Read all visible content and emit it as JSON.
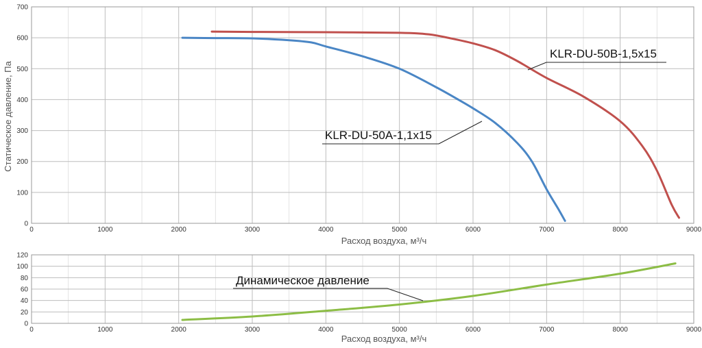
{
  "chart_data": [
    {
      "type": "line",
      "ylabel": "Статическое давление, Па",
      "xlabel": "Расход воздуха, м³/ч",
      "xlim": [
        0,
        9000
      ],
      "ylim": [
        0,
        700
      ],
      "x_ticks": [
        0,
        1000,
        2000,
        3000,
        4000,
        5000,
        6000,
        7000,
        8000,
        9000
      ],
      "y_ticks": [
        0,
        100,
        200,
        300,
        400,
        500,
        600,
        700
      ],
      "grid": true,
      "series": [
        {
          "name": "KLR-DU-50A-1,1x15",
          "color": "#4a86c5",
          "points": [
            [
              2050,
              600
            ],
            [
              2500,
              599
            ],
            [
              3000,
              598
            ],
            [
              3500,
              592
            ],
            [
              3800,
              585
            ],
            [
              4000,
              572
            ],
            [
              4500,
              540
            ],
            [
              5000,
              500
            ],
            [
              5500,
              440
            ],
            [
              5800,
              400
            ],
            [
              6000,
              372
            ],
            [
              6300,
              325
            ],
            [
              6600,
              260
            ],
            [
              6800,
              200
            ],
            [
              7000,
              110
            ],
            [
              7150,
              50
            ],
            [
              7250,
              8
            ]
          ]
        },
        {
          "name": "KLR-DU-50B-1,5x15",
          "color": "#c0504d",
          "points": [
            [
              2450,
              620
            ],
            [
              3000,
              619
            ],
            [
              4000,
              618
            ],
            [
              5000,
              616
            ],
            [
              5400,
              611
            ],
            [
              5700,
              598
            ],
            [
              6000,
              582
            ],
            [
              6300,
              560
            ],
            [
              6600,
              525
            ],
            [
              7000,
              470
            ],
            [
              7500,
              410
            ],
            [
              8000,
              330
            ],
            [
              8300,
              250
            ],
            [
              8500,
              170
            ],
            [
              8700,
              60
            ],
            [
              8800,
              18
            ]
          ]
        }
      ],
      "annotations": [
        "KLR-DU-50B-1,5x15",
        "KLR-DU-50A-1,1x15"
      ]
    },
    {
      "type": "line",
      "xlabel": "Расход воздуха, м³/ч",
      "xlim": [
        0,
        9000
      ],
      "ylim": [
        0,
        120
      ],
      "x_ticks": [
        0,
        1000,
        2000,
        3000,
        4000,
        5000,
        6000,
        7000,
        8000,
        9000
      ],
      "y_ticks": [
        0,
        20,
        40,
        60,
        80,
        100,
        120
      ],
      "grid": true,
      "series": [
        {
          "name": "Динамическое давление",
          "color": "#8cbd45",
          "points": [
            [
              2050,
              6
            ],
            [
              3000,
              12
            ],
            [
              4000,
              22
            ],
            [
              5000,
              33
            ],
            [
              6000,
              48
            ],
            [
              7000,
              68
            ],
            [
              8000,
              87
            ],
            [
              8750,
              105
            ]
          ]
        }
      ],
      "annotations": [
        "Динамическое давление"
      ]
    }
  ]
}
